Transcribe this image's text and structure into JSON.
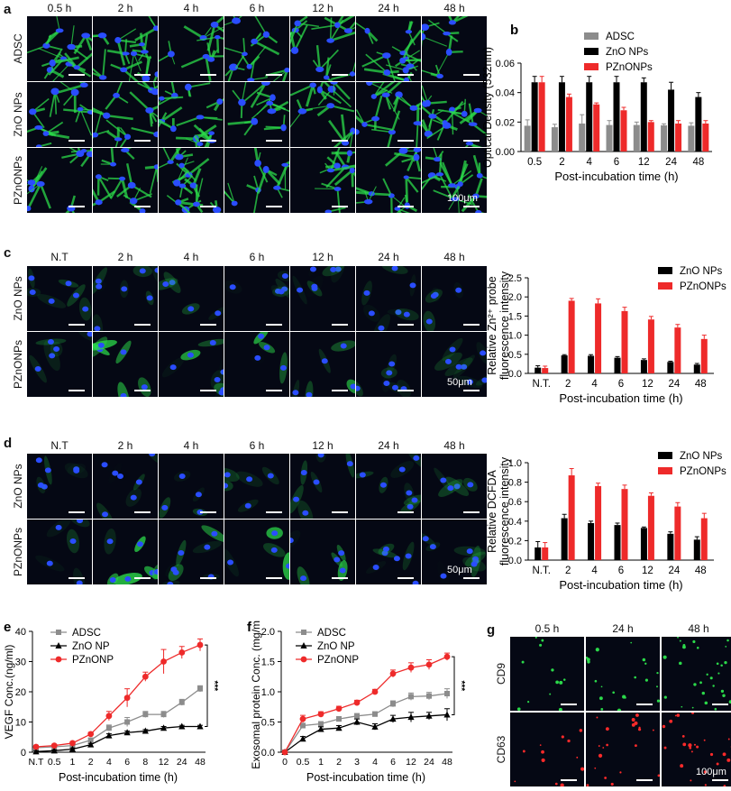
{
  "panel_a": {
    "letter": "a",
    "columns": [
      "0.5 h",
      "2 h",
      "4 h",
      "6 h",
      "12 h",
      "24 h",
      "48 h"
    ],
    "rows": [
      "ADSC",
      "ZnO NPs",
      "PZnONPs"
    ],
    "scale_bar": "100μm"
  },
  "panel_c_images": {
    "letter": "c",
    "columns": [
      "N.T",
      "2 h",
      "4 h",
      "6 h",
      "12 h",
      "24 h",
      "48 h"
    ],
    "rows": [
      "ZnO NPs",
      "PZnONPs"
    ],
    "scale_bar": "50μm"
  },
  "panel_d_images": {
    "letter": "d",
    "columns": [
      "N.T",
      "2 h",
      "4 h",
      "6 h",
      "12 h",
      "24 h",
      "48 h"
    ],
    "rows": [
      "ZnO NPs",
      "PZnONPs"
    ],
    "scale_bar": "50μm"
  },
  "panel_g": {
    "letter": "g",
    "columns": [
      "0.5 h",
      "24 h",
      "48 h"
    ],
    "rows": [
      "CD9",
      "CD63"
    ],
    "scale_bar": "100μm"
  },
  "colors": {
    "grey": "#8c8c8c",
    "black": "#000000",
    "red": "#ee2a2a",
    "green": "#2bd94a",
    "blue": "#2a4dff"
  },
  "chart_data": [
    {
      "id": "b",
      "letter": "b",
      "type": "bar",
      "categories": [
        "0.5",
        "2",
        "4",
        "6",
        "12",
        "24",
        "48"
      ],
      "series": [
        {
          "name": "ADSC",
          "color": "#8c8c8c",
          "values": [
            0.0175,
            0.0165,
            0.019,
            0.018,
            0.018,
            0.0178,
            0.0175
          ],
          "errors": [
            0.004,
            0.002,
            0.006,
            0.003,
            0.002,
            0.001,
            0.002
          ]
        },
        {
          "name": "ZnO NPs",
          "color": "#000000",
          "values": [
            0.047,
            0.047,
            0.047,
            0.047,
            0.047,
            0.042,
            0.037
          ],
          "errors": [
            0.004,
            0.004,
            0.004,
            0.004,
            0.003,
            0.005,
            0.003
          ]
        },
        {
          "name": "PZnONPs",
          "color": "#ee2a2a",
          "values": [
            0.047,
            0.037,
            0.032,
            0.028,
            0.02,
            0.019,
            0.019
          ],
          "errors": [
            0.004,
            0.002,
            0.001,
            0.002,
            0.001,
            0.002,
            0.002
          ]
        }
      ],
      "ylabel": "Optical Density (532nm)",
      "xlabel": "Post-incubation time (h)",
      "ylim": [
        0,
        0.06
      ],
      "yticks": [
        0.0,
        0.02,
        0.04,
        0.06
      ],
      "ytick_labels": [
        "0.00",
        "0.02",
        "0.04",
        "0.06"
      ],
      "legend": "top-right"
    },
    {
      "id": "c",
      "type": "bar",
      "categories": [
        "N.T.",
        "2",
        "4",
        "6",
        "12",
        "24",
        "48"
      ],
      "series": [
        {
          "name": "ZnO NPs",
          "color": "#000000",
          "values": [
            0.15,
            0.47,
            0.46,
            0.41,
            0.35,
            0.3,
            0.23
          ],
          "errors": [
            0.05,
            0.02,
            0.03,
            0.03,
            0.03,
            0.02,
            0.03
          ]
        },
        {
          "name": "PZnONPs",
          "color": "#ee2a2a",
          "values": [
            0.14,
            1.9,
            1.83,
            1.63,
            1.41,
            1.2,
            0.9
          ],
          "errors": [
            0.05,
            0.06,
            0.12,
            0.1,
            0.08,
            0.08,
            0.1
          ]
        }
      ],
      "ylabel_lines": [
        "Relative Zn²⁺ probe",
        "fluorescence intensity"
      ],
      "xlabel": "Post-incubation time (h)",
      "ylim": [
        0,
        2.5
      ],
      "yticks": [
        0,
        0.5,
        1,
        1.5,
        2,
        2.5
      ],
      "ytick_labels": [
        "0.0",
        "0.5",
        "1.0",
        "1.5",
        "2.0",
        "2.5"
      ],
      "legend": "top-right"
    },
    {
      "id": "d",
      "type": "bar",
      "categories": [
        "N.T.",
        "2",
        "4",
        "6",
        "12",
        "24",
        "48"
      ],
      "series": [
        {
          "name": "ZnO NPs",
          "color": "#000000",
          "values": [
            0.13,
            0.43,
            0.38,
            0.36,
            0.33,
            0.27,
            0.21
          ],
          "errors": [
            0.06,
            0.04,
            0.02,
            0.02,
            0.01,
            0.02,
            0.03
          ]
        },
        {
          "name": "PZnONPs",
          "color": "#ee2a2a",
          "values": [
            0.13,
            0.87,
            0.76,
            0.73,
            0.66,
            0.55,
            0.43
          ],
          "errors": [
            0.05,
            0.07,
            0.03,
            0.04,
            0.03,
            0.04,
            0.05
          ]
        }
      ],
      "ylabel_lines": [
        "Relative DCFDA",
        "fluorescence intensity"
      ],
      "xlabel": "Post-incubation time (h)",
      "ylim": [
        0,
        1.0
      ],
      "yticks": [
        0,
        0.2,
        0.4,
        0.6,
        0.8,
        1.0
      ],
      "ytick_labels": [
        "0.0",
        "0.2",
        "0.4",
        "0.6",
        "0.8",
        "1.0"
      ],
      "legend": "top-right"
    },
    {
      "id": "e",
      "letter": "e",
      "type": "line",
      "categories": [
        "N.T",
        "0.5",
        "1",
        "2",
        "4",
        "6",
        "8",
        "12",
        "24",
        "48"
      ],
      "series": [
        {
          "name": "ADSC",
          "color": "#8c8c8c",
          "marker": "square",
          "values": [
            1.5,
            1.8,
            2.2,
            4.0,
            8.0,
            10.0,
            12.5,
            12.5,
            16.5,
            21.0
          ],
          "errors": [
            0.4,
            0.4,
            0.5,
            0.6,
            1.0,
            1.5,
            1.0,
            1.0,
            1.0,
            1.0
          ]
        },
        {
          "name": "ZnO NP",
          "color": "#000000",
          "marker": "triangle",
          "values": [
            0.2,
            0.5,
            1.0,
            2.5,
            5.5,
            6.5,
            7.0,
            8.0,
            8.5,
            8.5
          ],
          "errors": [
            0.3,
            0.3,
            0.4,
            0.4,
            0.6,
            0.5,
            0.5,
            0.5,
            0.4,
            0.4
          ]
        },
        {
          "name": "PZnONP",
          "color": "#ee2a2a",
          "marker": "circle",
          "values": [
            1.8,
            2.2,
            3.0,
            6.0,
            12.0,
            18.0,
            25.0,
            30.0,
            33.0,
            35.5
          ],
          "errors": [
            0.4,
            0.4,
            0.5,
            0.6,
            1.5,
            3.0,
            1.5,
            4.0,
            2.0,
            2.0
          ]
        }
      ],
      "ylabel": "VEGF Conc.(ng/ml)",
      "xlabel": "Post-incubation time (h)",
      "ylim": [
        0,
        40
      ],
      "yticks": [
        0,
        10,
        20,
        30,
        40
      ],
      "ytick_labels": [
        "0",
        "10",
        "20",
        "30",
        "40"
      ],
      "legend": "top-left",
      "annotation": "***"
    },
    {
      "id": "f",
      "letter": "f",
      "type": "line",
      "categories": [
        "0",
        "0.5",
        "1",
        "2",
        "3",
        "4",
        "6",
        "12",
        "24",
        "48"
      ],
      "series": [
        {
          "name": "ADSC",
          "color": "#8c8c8c",
          "marker": "square",
          "values": [
            0.0,
            0.44,
            0.47,
            0.55,
            0.6,
            0.63,
            0.8,
            0.92,
            0.93,
            0.97
          ],
          "errors": [
            0.02,
            0.04,
            0.03,
            0.04,
            0.04,
            0.04,
            0.05,
            0.06,
            0.06,
            0.08
          ]
        },
        {
          "name": "ZnO NP",
          "color": "#000000",
          "marker": "triangle",
          "values": [
            0.0,
            0.22,
            0.38,
            0.4,
            0.5,
            0.42,
            0.55,
            0.58,
            0.6,
            0.62
          ],
          "errors": [
            0.02,
            0.04,
            0.04,
            0.04,
            0.05,
            0.05,
            0.06,
            0.08,
            0.06,
            0.1
          ]
        },
        {
          "name": "PZnONP",
          "color": "#ee2a2a",
          "marker": "circle",
          "values": [
            0.0,
            0.55,
            0.63,
            0.72,
            0.82,
            1.0,
            1.3,
            1.4,
            1.45,
            1.58
          ],
          "errors": [
            0.02,
            0.06,
            0.04,
            0.04,
            0.04,
            0.04,
            0.06,
            0.08,
            0.08,
            0.06
          ]
        }
      ],
      "ylabel": "Exosomal protein Conc. (mg/ml)",
      "xlabel": "Post-incubation time (h)",
      "ylim": [
        0,
        2.0
      ],
      "yticks": [
        0,
        0.5,
        1.0,
        1.5,
        2.0
      ],
      "ytick_labels": [
        "0.0",
        "0.5",
        "1.0",
        "1.5",
        "2.0"
      ],
      "legend": "top-left",
      "annotation": "***"
    }
  ]
}
